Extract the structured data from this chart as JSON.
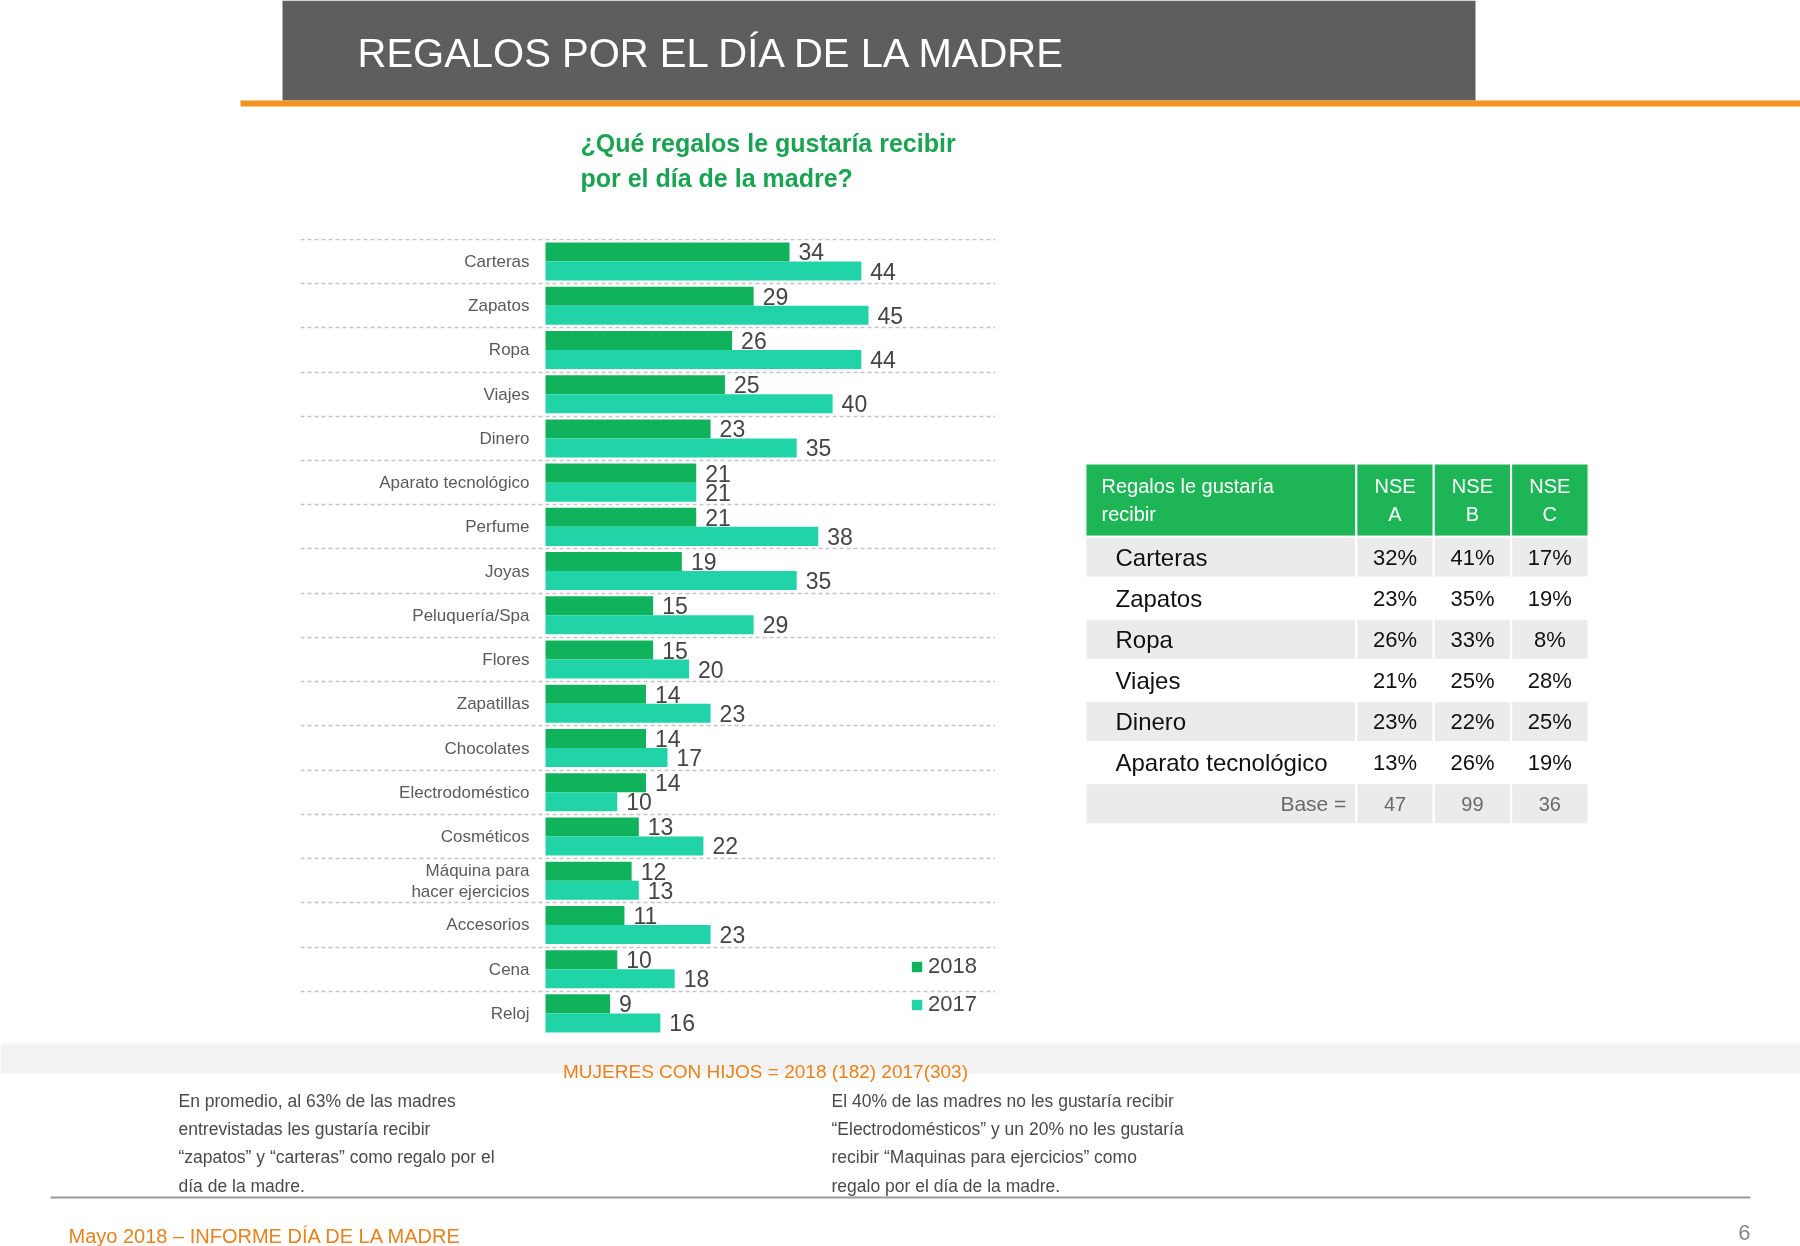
{
  "chart_data": [
    {
      "type": "bar",
      "orientation": "horizontal",
      "title": "REGALOS POR EL DÍA DE LA MADRE",
      "subtitle": "¿Qué regalos le gustaría recibir por el día de la madre?",
      "categories": [
        "Carteras",
        "Zapatos",
        "Ropa",
        "Viajes",
        "Dinero",
        "Aparato tecnológico",
        "Perfume",
        "Joyas",
        "Peluquería/Spa",
        "Flores",
        "Zapatillas",
        "Chocolates",
        "Electrodoméstico",
        "Cosméticos",
        "Máquina para hacer ejercicios",
        "Accesorios",
        "Cena",
        "Reloj"
      ],
      "series": [
        {
          "name": "2018",
          "color": "#10b35b",
          "values": [
            34,
            29,
            26,
            25,
            23,
            21,
            21,
            19,
            15,
            15,
            14,
            14,
            14,
            13,
            12,
            11,
            10,
            9
          ]
        },
        {
          "name": "2017",
          "color": "#20d4a8",
          "values": [
            44,
            45,
            44,
            40,
            35,
            21,
            38,
            35,
            29,
            20,
            23,
            17,
            10,
            22,
            13,
            23,
            18,
            16
          ]
        }
      ],
      "data_labels": true,
      "grid": "y",
      "legend": "bottom right",
      "annotations": [
        "MUJERES CON HIJOS = 2018 (182) 2017(303)",
        "En promedio, al 63% de las madres entrevistadas les gustaría recibir “zapatos” y “carteras” como regalo por el día de la madre.",
        "El 40% de las madres no les gustaría recibir “Electrodomésticos” y un 20% no les gustaría recibir “Maquinas para ejercicios” como regalo por el día de la madre.",
        "Mayo 2018 – INFORME DÍA DE LA MADRE",
        "6"
      ]
    },
    {
      "type": "heatmap",
      "ylabel": "Regalos le gustaría recibir",
      "categories": [
        "NSE A",
        "NSE B",
        "NSE C"
      ],
      "y_categories": [
        "Carteras",
        "Zapatos",
        "Ropa",
        "Viajes",
        "Dinero",
        "Aparato tecnológico",
        "Base ="
      ],
      "cells": [
        [
          32,
          41,
          17
        ],
        [
          23,
          35,
          19
        ],
        [
          26,
          33,
          8
        ],
        [
          21,
          25,
          28
        ],
        [
          23,
          22,
          25
        ],
        [
          13,
          26,
          19
        ],
        [
          47,
          99,
          36
        ]
      ],
      "cell_labels": [
        [
          "32%",
          "41%",
          "17%"
        ],
        [
          "23%",
          "35%",
          "19%"
        ],
        [
          "26%",
          "33%",
          "8%"
        ],
        [
          "21%",
          "25%",
          "28%"
        ],
        [
          "23%",
          "22%",
          "25%"
        ],
        [
          "13%",
          "26%",
          "19%"
        ],
        [
          "47",
          "99",
          "36"
        ]
      ]
    }
  ]
}
